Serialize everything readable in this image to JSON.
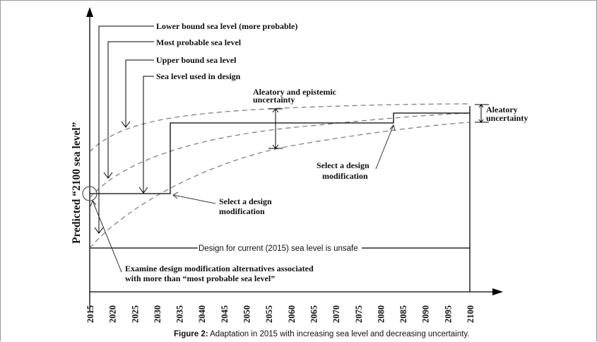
{
  "figure": {
    "caption_label": "Figure 2:",
    "caption_text": " Adaptation in 2015 with increasing sea level and decreasing uncertainty."
  },
  "axes": {
    "y_label": "Predicted “2100 sea level”",
    "x_ticks": [
      "2015",
      "2020",
      "2025",
      "2030",
      "2035",
      "2040",
      "2045",
      "2050",
      "2055",
      "2060",
      "2065",
      "2070",
      "2075",
      "2080",
      "2085",
      "2090",
      "2095",
      "2100"
    ]
  },
  "legend": {
    "lower_bound": "Lower bound sea level (more probable)",
    "most_probable": "Most probable sea level",
    "upper_bound": "Upper bound sea level",
    "design_level": "Sea level used in design"
  },
  "annotations": {
    "aleatory_epistemic_line1": "Aleatory and epistemic",
    "aleatory_epistemic_line2": "uncertainty",
    "aleatory_line1": "Aleatory",
    "aleatory_line2": "uncertainty",
    "select_mod_1_line1": "Select a design",
    "select_mod_1_line2": "modification",
    "select_mod_2_line1": "Select a design",
    "select_mod_2_line2": "modification",
    "unsafe": "Design for current (2015) sea level is unsafe",
    "examine_line1": "Examine design modification alternatives associated",
    "examine_line2": "with more than “most probable sea level”"
  }
}
